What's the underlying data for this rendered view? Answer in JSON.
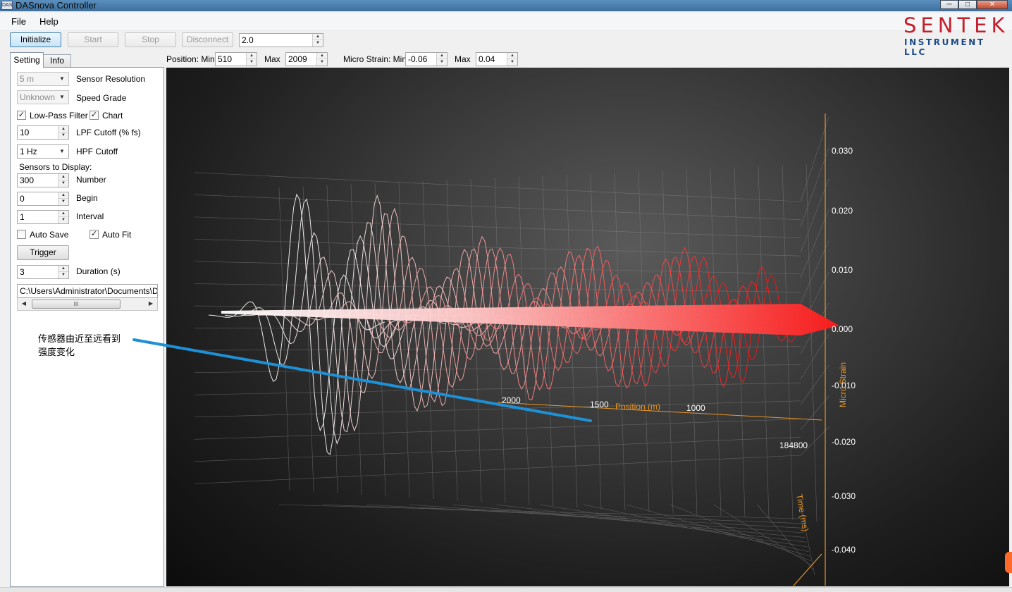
{
  "window": {
    "title": "DASnova Controller",
    "icon_text": "DAS"
  },
  "menu": {
    "file": "File",
    "help": "Help"
  },
  "toolbar": {
    "initialize": "Initialize",
    "start": "Start",
    "stop": "Stop",
    "disconnect": "Disconnect",
    "value": "2.0"
  },
  "logo": {
    "main": "SENTEK",
    "sub": "INSTRUMENT LLC"
  },
  "range": {
    "position_min_label": "Position: Min",
    "position_min": "510",
    "position_max_label": "Max",
    "position_max": "2009",
    "strain_min_label": "Micro Strain: Min",
    "strain_min": "-0.06",
    "strain_max_label": "Max",
    "strain_max": "0.04"
  },
  "tabs": {
    "setting": "Setting",
    "info": "Info"
  },
  "settings": {
    "sensor_resolution_value": "5 m",
    "sensor_resolution_label": "Sensor Resolution",
    "speed_grade_value": "Unknown",
    "speed_grade_label": "Speed Grade",
    "lowpass_label": "Low-Pass Filter",
    "lowpass_checked": true,
    "chart_label": "Chart",
    "chart_checked": true,
    "lpf_value": "10",
    "lpf_label": "LPF Cutoff (% fs)",
    "hpf_value": "1 Hz",
    "hpf_label": "HPF Cutoff",
    "sensors_header": "Sensors to Display:",
    "number_value": "300",
    "number_label": "Number",
    "begin_value": "0",
    "begin_label": "Begin",
    "interval_value": "1",
    "interval_label": "Interval",
    "autosave_label": "Auto Save",
    "autosave_checked": false,
    "autofit_label": "Auto Fit",
    "autofit_checked": true,
    "trigger_label": "Trigger",
    "duration_value": "3",
    "duration_label": "Duration (s)",
    "path_value": "C:\\Users\\Administrator\\Documents\\DAS",
    "scroll_grip": "III"
  },
  "annotation": {
    "line1": "传感器由近至远看到",
    "line2": "强度变化"
  },
  "colors": {
    "annotation_line": "#1e90d6",
    "axis_orange": "#e8962a",
    "trace_near": "#ffffff",
    "trace_far": "#ff1010"
  },
  "chart_data": {
    "type": "area",
    "title": "",
    "z_axis": {
      "label": "Micro Strain",
      "ticks": [
        "0.030",
        "0.020",
        "0.010",
        "0.000",
        "-0.010",
        "-0.020",
        "-0.030",
        "-0.040"
      ],
      "values": [
        0.03,
        0.02,
        0.01,
        0.0,
        -0.01,
        -0.02,
        -0.03,
        -0.04
      ]
    },
    "x_axis": {
      "label": "Position (m)",
      "ticks": [
        "2000",
        "1500",
        "1000"
      ],
      "values": [
        2000,
        1500,
        1000
      ]
    },
    "y_axis": {
      "label": "Time (ms)",
      "ticks": [
        "184800"
      ],
      "values": [
        184800
      ]
    },
    "series": [
      {
        "position_m": 1950,
        "amplitude": 0.022
      },
      {
        "position_m": 1900,
        "amplitude": 0.024
      },
      {
        "position_m": 1850,
        "amplitude": 0.021
      },
      {
        "position_m": 1800,
        "amplitude": 0.02
      },
      {
        "position_m": 1750,
        "amplitude": 0.022
      },
      {
        "position_m": 1700,
        "amplitude": 0.018
      },
      {
        "position_m": 1650,
        "amplitude": 0.019
      },
      {
        "position_m": 1600,
        "amplitude": 0.016
      },
      {
        "position_m": 1550,
        "amplitude": 0.014
      },
      {
        "position_m": 1500,
        "amplitude": 0.015
      },
      {
        "position_m": 1450,
        "amplitude": 0.013
      },
      {
        "position_m": 1400,
        "amplitude": 0.014
      },
      {
        "position_m": 1350,
        "amplitude": 0.012
      },
      {
        "position_m": 1300,
        "amplitude": 0.013
      },
      {
        "position_m": 1250,
        "amplitude": 0.014
      },
      {
        "position_m": 1200,
        "amplitude": 0.012
      },
      {
        "position_m": 1150,
        "amplitude": 0.013
      },
      {
        "position_m": 1100,
        "amplitude": 0.011
      },
      {
        "position_m": 1050,
        "amplitude": 0.012
      },
      {
        "position_m": 1000,
        "amplitude": 0.013
      },
      {
        "position_m": 950,
        "amplitude": 0.012
      },
      {
        "position_m": 900,
        "amplitude": 0.011
      },
      {
        "position_m": 850,
        "amplitude": 0.012
      },
      {
        "position_m": 800,
        "amplitude": 0.011
      },
      {
        "position_m": 750,
        "amplitude": 0.012
      },
      {
        "position_m": 700,
        "amplitude": 0.011
      },
      {
        "position_m": 650,
        "amplitude": 0.012
      },
      {
        "position_m": 600,
        "amplitude": 0.01
      },
      {
        "position_m": 550,
        "amplitude": 0.011
      },
      {
        "position_m": 510,
        "amplitude": 0.008
      }
    ],
    "grid": true
  }
}
